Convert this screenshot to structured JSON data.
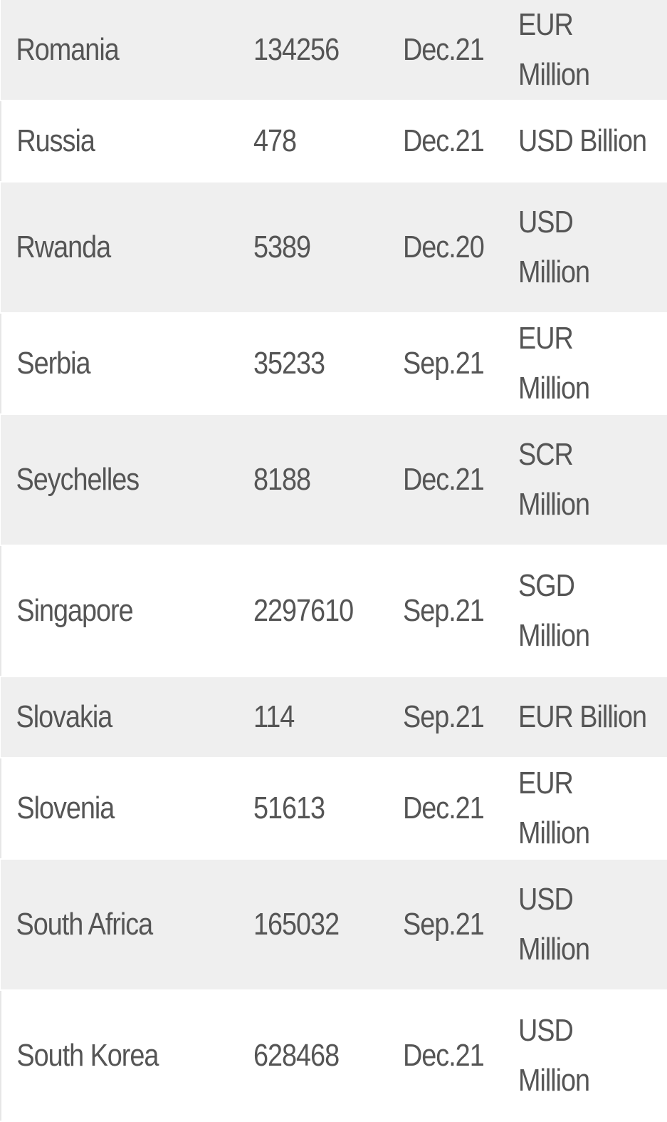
{
  "rows": [
    {
      "country": "Romania",
      "value": "134256",
      "date": "Dec.21",
      "unit": "EUR Million",
      "wrap": false
    },
    {
      "country": "Russia",
      "value": "478",
      "date": "Dec.21",
      "unit": "USD Billion",
      "wrap": false
    },
    {
      "country": "Rwanda",
      "value": "5389",
      "date": "Dec.20",
      "unit": "USD Million",
      "wrap": true
    },
    {
      "country": "Serbia",
      "value": "35233",
      "date": "Sep.21",
      "unit": "EUR Million",
      "wrap": false
    },
    {
      "country": "Seychelles",
      "value": "8188",
      "date": "Dec.21",
      "unit": "SCR Million",
      "wrap": true
    },
    {
      "country": "Singapore",
      "value": "2297610",
      "date": "Sep.21",
      "unit": "SGD Million",
      "wrap": true
    },
    {
      "country": "Slovakia",
      "value": "114",
      "date": "Sep.21",
      "unit": "EUR Billion",
      "wrap": false
    },
    {
      "country": "Slovenia",
      "value": "51613",
      "date": "Dec.21",
      "unit": "EUR Million",
      "wrap": false
    },
    {
      "country": "South Africa",
      "value": "165032",
      "date": "Sep.21",
      "unit": "USD Million",
      "wrap": true
    },
    {
      "country": "South Korea",
      "value": "628468",
      "date": "Dec.21",
      "unit": "USD Million",
      "wrap": true
    }
  ]
}
